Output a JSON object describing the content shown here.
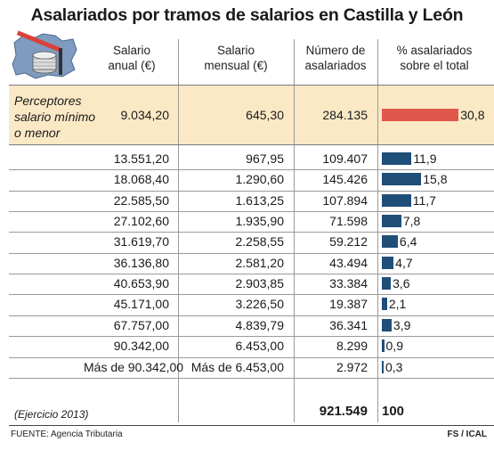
{
  "title": "Asalariados por tramos de salarios en Castilla y León",
  "headers": {
    "annual": [
      "Salario",
      "anual (€)"
    ],
    "monthly": [
      "Salario",
      "mensual (€)"
    ],
    "count": [
      "Número de",
      "asalariados"
    ],
    "percent": [
      "% asalariados",
      "sobre el total"
    ]
  },
  "highlight_row": {
    "label": [
      "Perceptores",
      "salario mínimo",
      "o menor"
    ],
    "annual": "9.034,20",
    "monthly": "645,30",
    "count": "284.135",
    "percent": "30,8",
    "percent_value": 30.8
  },
  "rows": [
    {
      "annual": "13.551,20",
      "monthly": "967,95",
      "count": "109.407",
      "percent": "11,9",
      "percent_value": 11.9
    },
    {
      "annual": "18.068,40",
      "monthly": "1.290,60",
      "count": "145.426",
      "percent": "15,8",
      "percent_value": 15.8
    },
    {
      "annual": "22.585,50",
      "monthly": "1.613,25",
      "count": "107.894",
      "percent": "11,7",
      "percent_value": 11.7
    },
    {
      "annual": "27.102,60",
      "monthly": "1.935,90",
      "count": "71.598",
      "percent": "7,8",
      "percent_value": 7.8
    },
    {
      "annual": "31.619,70",
      "monthly": "2.258,55",
      "count": "59.212",
      "percent": "6,4",
      "percent_value": 6.4
    },
    {
      "annual": "36.136,80",
      "monthly": "2.581,20",
      "count": "43.494",
      "percent": "4,7",
      "percent_value": 4.7
    },
    {
      "annual": "40.653,90",
      "monthly": "2.903,85",
      "count": "33.384",
      "percent": "3,6",
      "percent_value": 3.6
    },
    {
      "annual": "45.171,00",
      "monthly": "3.226,50",
      "count": "19.387",
      "percent": "2,1",
      "percent_value": 2.1
    },
    {
      "annual": "67.757,00",
      "monthly": "4.839,79",
      "count": "36.341",
      "percent": "3,9",
      "percent_value": 3.9
    },
    {
      "annual": "90.342,00",
      "monthly": "6.453,00",
      "count": "8.299",
      "percent": "0,9",
      "percent_value": 0.9
    },
    {
      "annual": "Más de 90.342,00",
      "monthly": "Más de 6.453,00",
      "count": "2.972",
      "percent": "0,3",
      "percent_value": 0.3
    }
  ],
  "total_row": {
    "note": "(Ejercicio 2013)",
    "count": "921.549",
    "percent": "100"
  },
  "footer": {
    "source": "FUENTE: Agencia Tributaria",
    "credit": "FS / ICAL"
  },
  "colors": {
    "highlight_bar": "#e0574b",
    "bar": "#1f4e79",
    "band": "#fbe9c6"
  },
  "chart_data": {
    "type": "table",
    "title": "Asalariados por tramos de salarios en Castilla y León",
    "columns": [
      "Salario anual (€)",
      "Salario mensual (€)",
      "Número de asalariados",
      "% asalariados sobre el total"
    ],
    "categories": [
      "9.034,20",
      "13.551,20",
      "18.068,40",
      "22.585,50",
      "27.102,60",
      "31.619,70",
      "36.136,80",
      "40.653,90",
      "45.171,00",
      "67.757,00",
      "90.342,00",
      "Más de 90.342,00"
    ],
    "series": [
      {
        "name": "Número de asalariados",
        "values": [
          284135,
          109407,
          145426,
          107894,
          71598,
          59212,
          43494,
          33384,
          19387,
          36341,
          8299,
          2972
        ]
      },
      {
        "name": "% asalariados sobre el total",
        "values": [
          30.8,
          11.9,
          15.8,
          11.7,
          7.8,
          6.4,
          4.7,
          3.6,
          2.1,
          3.9,
          0.9,
          0.3
        ]
      }
    ],
    "total": {
      "count": 921549,
      "percent": 100
    }
  }
}
